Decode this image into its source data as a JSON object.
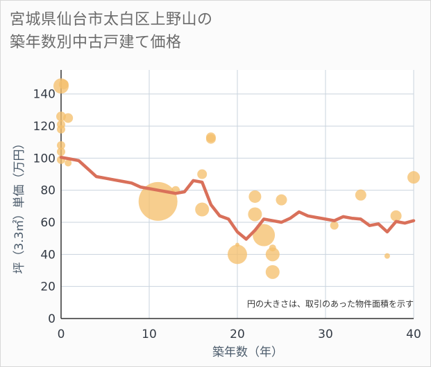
{
  "chart_data": {
    "type": "scatter",
    "title": [
      "宮城県仙台市太白区上野山の",
      "築年数別中古戸建て価格"
    ],
    "xlabel": "築年数（年）",
    "ylabel": "坪（3.3㎡）単価（万円）",
    "xlim": [
      0,
      40
    ],
    "ylim": [
      0,
      155
    ],
    "xticks": [
      0,
      10,
      20,
      30,
      40
    ],
    "yticks": [
      0,
      20,
      40,
      60,
      80,
      100,
      120,
      140
    ],
    "note": "円の大きさは、取引のあった物件面積を示す",
    "colors": {
      "bubble": "#f5c06e",
      "line": "#d9705a",
      "grid": "#c9d3de"
    },
    "points": [
      {
        "x": 0,
        "y": 145,
        "s": 11
      },
      {
        "x": 0,
        "y": 126,
        "s": 7
      },
      {
        "x": 0,
        "y": 121,
        "s": 6
      },
      {
        "x": 0,
        "y": 118,
        "s": 6
      },
      {
        "x": 0,
        "y": 108,
        "s": 6
      },
      {
        "x": 0,
        "y": 104,
        "s": 6
      },
      {
        "x": 0,
        "y": 99,
        "s": 6
      },
      {
        "x": 0.3,
        "y": 146,
        "s": 7
      },
      {
        "x": 0.8,
        "y": 125,
        "s": 7
      },
      {
        "x": 0.8,
        "y": 97,
        "s": 5
      },
      {
        "x": 11,
        "y": 73,
        "s": 28
      },
      {
        "x": 13,
        "y": 80,
        "s": 6
      },
      {
        "x": 16,
        "y": 90,
        "s": 7
      },
      {
        "x": 16,
        "y": 68,
        "s": 10
      },
      {
        "x": 17,
        "y": 113,
        "s": 7
      },
      {
        "x": 17,
        "y": 112,
        "s": 7
      },
      {
        "x": 20,
        "y": 40,
        "s": 14
      },
      {
        "x": 20,
        "y": 46,
        "s": 3
      },
      {
        "x": 22,
        "y": 76,
        "s": 9
      },
      {
        "x": 22,
        "y": 65,
        "s": 10
      },
      {
        "x": 23,
        "y": 52,
        "s": 16
      },
      {
        "x": 24,
        "y": 44,
        "s": 5
      },
      {
        "x": 24,
        "y": 40,
        "s": 10
      },
      {
        "x": 24,
        "y": 29,
        "s": 10
      },
      {
        "x": 25,
        "y": 74,
        "s": 8
      },
      {
        "x": 31,
        "y": 58,
        "s": 6
      },
      {
        "x": 34,
        "y": 77,
        "s": 8
      },
      {
        "x": 37,
        "y": 39,
        "s": 4
      },
      {
        "x": 38,
        "y": 64,
        "s": 8
      },
      {
        "x": 40,
        "y": 88,
        "s": 9
      }
    ],
    "trend": {
      "x": [
        0,
        1,
        2,
        3,
        4,
        5,
        6,
        7,
        8,
        9,
        10,
        11,
        12,
        13,
        14,
        15,
        16,
        17,
        18,
        19,
        20,
        21,
        22,
        23,
        24,
        25,
        26,
        27,
        28,
        29,
        30,
        31,
        32,
        33,
        34,
        35,
        36,
        37,
        38,
        39,
        40
      ],
      "y": [
        100.5,
        99.5,
        98.5,
        93.5,
        88.5,
        87.5,
        86.5,
        85.5,
        84.5,
        82,
        81,
        80,
        79,
        78,
        79,
        86,
        85,
        71,
        64,
        62,
        54,
        49.5,
        55,
        62,
        61,
        60,
        62.5,
        66.5,
        64,
        63,
        62,
        61,
        63.5,
        62.5,
        62,
        58,
        59,
        54,
        60.5,
        59.5,
        61
      ]
    }
  }
}
